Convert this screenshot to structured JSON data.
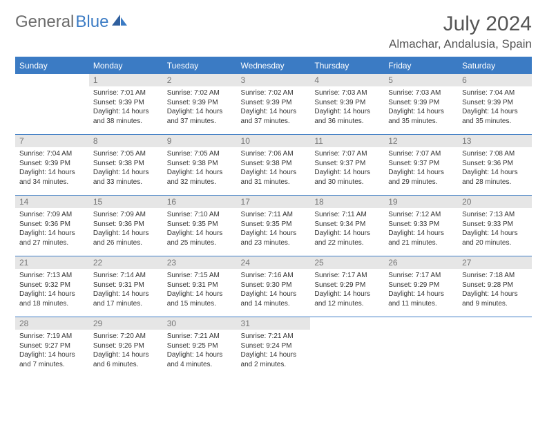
{
  "logo": {
    "text_gray": "General",
    "text_blue": "Blue"
  },
  "header": {
    "month_title": "July 2024",
    "location": "Almachar, Andalusia, Spain"
  },
  "colors": {
    "brand_blue": "#3b7bc4",
    "header_bg": "#3b7bc4",
    "daynum_bg": "#e6e6e6",
    "text": "#333333"
  },
  "weekdays": [
    "Sunday",
    "Monday",
    "Tuesday",
    "Wednesday",
    "Thursday",
    "Friday",
    "Saturday"
  ],
  "weeks": [
    [
      {
        "n": "",
        "t": ""
      },
      {
        "n": "1",
        "t": "Sunrise: 7:01 AM\nSunset: 9:39 PM\nDaylight: 14 hours and 38 minutes."
      },
      {
        "n": "2",
        "t": "Sunrise: 7:02 AM\nSunset: 9:39 PM\nDaylight: 14 hours and 37 minutes."
      },
      {
        "n": "3",
        "t": "Sunrise: 7:02 AM\nSunset: 9:39 PM\nDaylight: 14 hours and 37 minutes."
      },
      {
        "n": "4",
        "t": "Sunrise: 7:03 AM\nSunset: 9:39 PM\nDaylight: 14 hours and 36 minutes."
      },
      {
        "n": "5",
        "t": "Sunrise: 7:03 AM\nSunset: 9:39 PM\nDaylight: 14 hours and 35 minutes."
      },
      {
        "n": "6",
        "t": "Sunrise: 7:04 AM\nSunset: 9:39 PM\nDaylight: 14 hours and 35 minutes."
      }
    ],
    [
      {
        "n": "7",
        "t": "Sunrise: 7:04 AM\nSunset: 9:39 PM\nDaylight: 14 hours and 34 minutes."
      },
      {
        "n": "8",
        "t": "Sunrise: 7:05 AM\nSunset: 9:38 PM\nDaylight: 14 hours and 33 minutes."
      },
      {
        "n": "9",
        "t": "Sunrise: 7:05 AM\nSunset: 9:38 PM\nDaylight: 14 hours and 32 minutes."
      },
      {
        "n": "10",
        "t": "Sunrise: 7:06 AM\nSunset: 9:38 PM\nDaylight: 14 hours and 31 minutes."
      },
      {
        "n": "11",
        "t": "Sunrise: 7:07 AM\nSunset: 9:37 PM\nDaylight: 14 hours and 30 minutes."
      },
      {
        "n": "12",
        "t": "Sunrise: 7:07 AM\nSunset: 9:37 PM\nDaylight: 14 hours and 29 minutes."
      },
      {
        "n": "13",
        "t": "Sunrise: 7:08 AM\nSunset: 9:36 PM\nDaylight: 14 hours and 28 minutes."
      }
    ],
    [
      {
        "n": "14",
        "t": "Sunrise: 7:09 AM\nSunset: 9:36 PM\nDaylight: 14 hours and 27 minutes."
      },
      {
        "n": "15",
        "t": "Sunrise: 7:09 AM\nSunset: 9:36 PM\nDaylight: 14 hours and 26 minutes."
      },
      {
        "n": "16",
        "t": "Sunrise: 7:10 AM\nSunset: 9:35 PM\nDaylight: 14 hours and 25 minutes."
      },
      {
        "n": "17",
        "t": "Sunrise: 7:11 AM\nSunset: 9:35 PM\nDaylight: 14 hours and 23 minutes."
      },
      {
        "n": "18",
        "t": "Sunrise: 7:11 AM\nSunset: 9:34 PM\nDaylight: 14 hours and 22 minutes."
      },
      {
        "n": "19",
        "t": "Sunrise: 7:12 AM\nSunset: 9:33 PM\nDaylight: 14 hours and 21 minutes."
      },
      {
        "n": "20",
        "t": "Sunrise: 7:13 AM\nSunset: 9:33 PM\nDaylight: 14 hours and 20 minutes."
      }
    ],
    [
      {
        "n": "21",
        "t": "Sunrise: 7:13 AM\nSunset: 9:32 PM\nDaylight: 14 hours and 18 minutes."
      },
      {
        "n": "22",
        "t": "Sunrise: 7:14 AM\nSunset: 9:31 PM\nDaylight: 14 hours and 17 minutes."
      },
      {
        "n": "23",
        "t": "Sunrise: 7:15 AM\nSunset: 9:31 PM\nDaylight: 14 hours and 15 minutes."
      },
      {
        "n": "24",
        "t": "Sunrise: 7:16 AM\nSunset: 9:30 PM\nDaylight: 14 hours and 14 minutes."
      },
      {
        "n": "25",
        "t": "Sunrise: 7:17 AM\nSunset: 9:29 PM\nDaylight: 14 hours and 12 minutes."
      },
      {
        "n": "26",
        "t": "Sunrise: 7:17 AM\nSunset: 9:29 PM\nDaylight: 14 hours and 11 minutes."
      },
      {
        "n": "27",
        "t": "Sunrise: 7:18 AM\nSunset: 9:28 PM\nDaylight: 14 hours and 9 minutes."
      }
    ],
    [
      {
        "n": "28",
        "t": "Sunrise: 7:19 AM\nSunset: 9:27 PM\nDaylight: 14 hours and 7 minutes."
      },
      {
        "n": "29",
        "t": "Sunrise: 7:20 AM\nSunset: 9:26 PM\nDaylight: 14 hours and 6 minutes."
      },
      {
        "n": "30",
        "t": "Sunrise: 7:21 AM\nSunset: 9:25 PM\nDaylight: 14 hours and 4 minutes."
      },
      {
        "n": "31",
        "t": "Sunrise: 7:21 AM\nSunset: 9:24 PM\nDaylight: 14 hours and 2 minutes."
      },
      {
        "n": "",
        "t": ""
      },
      {
        "n": "",
        "t": ""
      },
      {
        "n": "",
        "t": ""
      }
    ]
  ]
}
